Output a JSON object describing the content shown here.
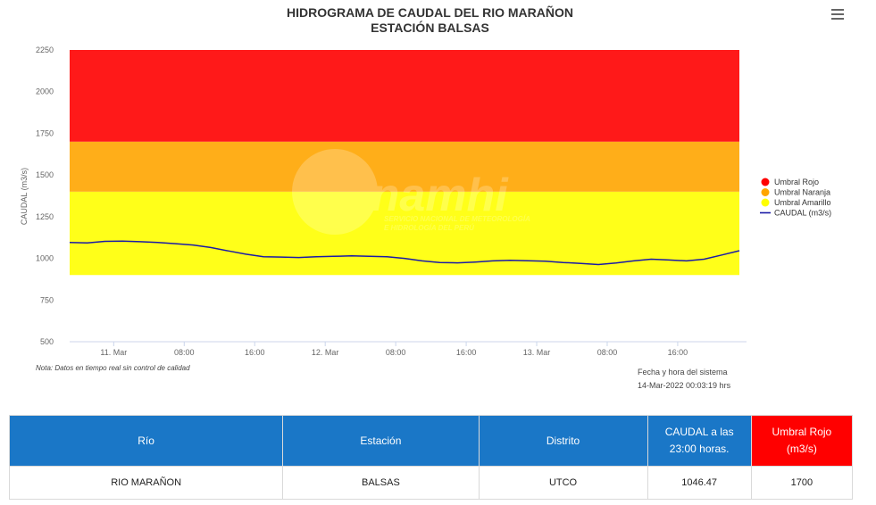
{
  "title": "HIDROGRAMA DE CAUDAL DEL RIO MARAÑON",
  "subtitle": "ESTACIÓN BALSAS",
  "menu_icon": "hamburger-menu-icon",
  "watermark": {
    "brand": "Senamhi",
    "line1": "SERVICIO NACIONAL DE METEOROLOGÍA",
    "line2": "E HIDROLOGÍA DEL PERÚ"
  },
  "note": "Nota: Datos en tiempo real sin control de calidad",
  "system_date_label": "Fecha y hora del sistema",
  "system_date_value": "14-Mar-2022 00:03:19 hrs",
  "chart_data": {
    "type": "line",
    "title": "HIDROGRAMA DE CAUDAL DEL RIO MARAÑON",
    "subtitle": "ESTACIÓN BALSAS",
    "ylabel": "CAUDAL (m3/s)",
    "ylim": [
      500,
      2250
    ],
    "yticks": [
      "500",
      "750",
      "1000",
      "1250",
      "1500",
      "1750",
      "2000",
      "2250"
    ],
    "xlim": [
      "2022-03-10T19:00",
      "2022-03-13T23:00"
    ],
    "xticks": [
      {
        "t": "2022-03-11T00:00",
        "label": "11. Mar"
      },
      {
        "t": "2022-03-11T08:00",
        "label": "08:00"
      },
      {
        "t": "2022-03-11T16:00",
        "label": "16:00"
      },
      {
        "t": "2022-03-12T00:00",
        "label": "12. Mar"
      },
      {
        "t": "2022-03-12T08:00",
        "label": "08:00"
      },
      {
        "t": "2022-03-12T16:00",
        "label": "16:00"
      },
      {
        "t": "2022-03-13T00:00",
        "label": "13. Mar"
      },
      {
        "t": "2022-03-13T08:00",
        "label": "08:00"
      },
      {
        "t": "2022-03-13T16:00",
        "label": "16:00"
      }
    ],
    "grid": false,
    "legend_position": "right",
    "bands": [
      {
        "name": "Umbral Amarillo",
        "from": 900,
        "to": 1400,
        "color": "#ffff00"
      },
      {
        "name": "Umbral Naranja",
        "from": 1400,
        "to": 1700,
        "color": "#ffa500"
      },
      {
        "name": "Umbral Rojo",
        "from": 1700,
        "to": 2250,
        "color": "#ff0000"
      }
    ],
    "legend": [
      {
        "name": "Umbral Rojo",
        "color": "#ff0000",
        "symbol": "circle"
      },
      {
        "name": "Umbral Naranja",
        "color": "#ffa500",
        "symbol": "circle"
      },
      {
        "name": "Umbral Amarillo",
        "color": "#ffff00",
        "symbol": "circle"
      },
      {
        "name": "CAUDAL (m3/s)",
        "color": "#1a1aa6",
        "symbol": "line"
      }
    ],
    "series": [
      {
        "name": "CAUDAL (m3/s)",
        "color": "#1a1aa6",
        "x": [
          "2022-03-10T19:00",
          "2022-03-10T21:00",
          "2022-03-10T23:00",
          "2022-03-11T01:00",
          "2022-03-11T03:00",
          "2022-03-11T05:00",
          "2022-03-11T07:00",
          "2022-03-11T09:00",
          "2022-03-11T11:00",
          "2022-03-11T13:00",
          "2022-03-11T15:00",
          "2022-03-11T17:00",
          "2022-03-11T19:00",
          "2022-03-11T21:00",
          "2022-03-11T23:00",
          "2022-03-12T01:00",
          "2022-03-12T03:00",
          "2022-03-12T05:00",
          "2022-03-12T07:00",
          "2022-03-12T09:00",
          "2022-03-12T11:00",
          "2022-03-12T13:00",
          "2022-03-12T15:00",
          "2022-03-12T17:00",
          "2022-03-12T19:00",
          "2022-03-12T21:00",
          "2022-03-12T23:00",
          "2022-03-13T01:00",
          "2022-03-13T03:00",
          "2022-03-13T05:00",
          "2022-03-13T07:00",
          "2022-03-13T09:00",
          "2022-03-13T11:00",
          "2022-03-13T13:00",
          "2022-03-13T15:00",
          "2022-03-13T17:00",
          "2022-03-13T19:00",
          "2022-03-13T21:00",
          "2022-03-13T23:00"
        ],
        "y": [
          1095,
          1093,
          1102,
          1103,
          1100,
          1095,
          1088,
          1080,
          1065,
          1045,
          1025,
          1010,
          1008,
          1005,
          1010,
          1012,
          1015,
          1012,
          1010,
          1000,
          985,
          975,
          973,
          978,
          985,
          988,
          986,
          983,
          975,
          970,
          963,
          972,
          985,
          995,
          990,
          985,
          995,
          1020,
          1046
        ]
      }
    ]
  },
  "table": {
    "headers": [
      {
        "text": "Río",
        "color": "#1a77c7"
      },
      {
        "text": "Estación",
        "color": "#1a77c7"
      },
      {
        "text": "Distrito",
        "color": "#1a77c7"
      },
      {
        "text": "CAUDAL a las 23:00 horas.",
        "color": "#1a77c7"
      },
      {
        "text": "Umbral Rojo (m3/s)",
        "color": "#ff0000"
      }
    ],
    "row": [
      "RIO MARAÑON",
      "BALSAS",
      "UTCO",
      "1046.47",
      "1700"
    ]
  }
}
